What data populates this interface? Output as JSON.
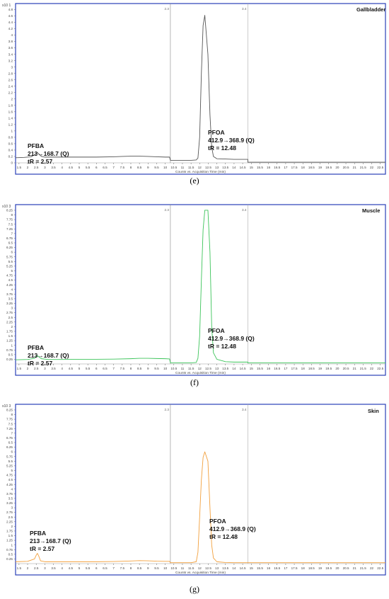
{
  "chart_data": [
    {
      "type": "line",
      "panel_label": "Gallbladder",
      "caption": "(e)",
      "line_color": "#555555",
      "y_exponent": "x10 1",
      "xlabel": "Counts vs. Acquisition Time (min)",
      "segment_labels": [
        "2.3",
        "3.4"
      ],
      "xlim": [
        1.3,
        22.8
      ],
      "ylim": [
        0,
        4.9
      ],
      "yticks": [
        "0",
        "0.2",
        "0.4",
        "0.6",
        "0.8",
        "1",
        "1.2",
        "1.4",
        "1.6",
        "1.8",
        "2",
        "2.2",
        "2.4",
        "2.6",
        "2.8",
        "3",
        "3.2",
        "3.4",
        "3.6",
        "3.8",
        "4",
        "4.2",
        "4.4",
        "4.6",
        "4.8"
      ],
      "xticks": [
        "1.5",
        "2",
        "2.5",
        "3",
        "3.5",
        "4",
        "4.5",
        "5",
        "5.5",
        "6",
        "6.5",
        "7",
        "7.5",
        "8",
        "8.5",
        "9",
        "9.5",
        "10",
        "10.5",
        "11",
        "11.5",
        "12",
        "12.5",
        "13",
        "13.5",
        "14",
        "14.5",
        "15",
        "15.5",
        "16",
        "16.5",
        "17",
        "17.5",
        "18",
        "18.5",
        "19",
        "19.5",
        "20",
        "20.5",
        "21",
        "21.5",
        "22",
        "22.5"
      ],
      "dividers": [
        10.3,
        14.8
      ],
      "series": [
        {
          "x": [
            1.3,
            1.8,
            2.2,
            2.4,
            2.5,
            2.57,
            2.65,
            2.8,
            3.0,
            4.0,
            5.0,
            6.0,
            7.0,
            7.5,
            8.0,
            8.5,
            9.0,
            9.5,
            10.0,
            10.25,
            10.3,
            10.6,
            11.0,
            11.5,
            11.8,
            11.9,
            12.0,
            12.1,
            12.2,
            12.3,
            12.48,
            12.6,
            12.7,
            12.8,
            13.0,
            13.5,
            14.0,
            14.5,
            14.8,
            14.8,
            16.0,
            18.0,
            20.0,
            22.8
          ],
          "y": [
            0.16,
            0.17,
            0.19,
            0.25,
            0.3,
            0.32,
            0.28,
            0.2,
            0.18,
            0.18,
            0.18,
            0.18,
            0.19,
            0.2,
            0.21,
            0.21,
            0.2,
            0.19,
            0.18,
            0.18,
            0.08,
            0.08,
            0.08,
            0.08,
            0.09,
            0.15,
            0.8,
            2.8,
            4.3,
            4.62,
            3.4,
            1.5,
            0.5,
            0.2,
            0.13,
            0.12,
            0.11,
            0.11,
            0.11,
            0.02,
            0.02,
            0.02,
            0.02,
            0.02
          ]
        }
      ],
      "annotations": {
        "pfba": [
          "PFBA",
          "213→168.7 (Q)",
          "tR = 2.57"
        ],
        "pfoa": [
          "PFOA",
          "412.9→368.9 (Q)",
          "tR = 12.48"
        ]
      }
    },
    {
      "type": "line",
      "panel_label": "Muscle",
      "caption": "(f)",
      "line_color": "#3cc45a",
      "y_exponent": "x10 3",
      "xlabel": "Counts vs. Acquisition Time (min)",
      "segment_labels": [
        "2.3",
        "3.4"
      ],
      "xlim": [
        1.3,
        22.8
      ],
      "ylim": [
        0,
        8.4
      ],
      "yticks": [
        "0.25",
        "0.5",
        "0.75",
        "1",
        "1.25",
        "1.5",
        "1.75",
        "2",
        "2.25",
        "2.5",
        "2.75",
        "3",
        "3.25",
        "3.5",
        "3.75",
        "4",
        "4.25",
        "4.5",
        "4.75",
        "5",
        "5.25",
        "5.5",
        "5.75",
        "6",
        "6.25",
        "6.5",
        "6.75",
        "7",
        "7.25",
        "7.5",
        "7.75",
        "8",
        "8.25"
      ],
      "xticks": [
        "1.5",
        "2",
        "2.5",
        "3",
        "3.5",
        "4",
        "4.5",
        "5",
        "5.5",
        "6",
        "6.5",
        "7",
        "7.5",
        "8",
        "8.5",
        "9",
        "9.5",
        "10",
        "10.5",
        "11",
        "11.5",
        "12",
        "12.5",
        "13",
        "13.5",
        "14",
        "14.5",
        "15",
        "15.5",
        "16",
        "16.5",
        "17",
        "17.5",
        "18",
        "18.5",
        "19",
        "19.5",
        "20",
        "20.5",
        "21",
        "21.5",
        "22",
        "22.5"
      ],
      "dividers": [
        10.3,
        14.8
      ],
      "series": [
        {
          "x": [
            1.3,
            2.0,
            2.4,
            2.5,
            2.57,
            2.65,
            2.8,
            3.2,
            4.0,
            5.0,
            6.0,
            7.0,
            8.0,
            8.5,
            9.0,
            9.5,
            10.0,
            10.25,
            10.3,
            11.0,
            11.5,
            11.8,
            11.9,
            12.0,
            12.1,
            12.2,
            12.3,
            12.48,
            12.6,
            12.7,
            12.8,
            13.0,
            13.5,
            14.0,
            14.8,
            14.8,
            16.0,
            18.0,
            20.0,
            22.8
          ],
          "y": [
            0.22,
            0.24,
            0.3,
            0.4,
            0.45,
            0.38,
            0.28,
            0.24,
            0.24,
            0.25,
            0.25,
            0.26,
            0.28,
            0.3,
            0.3,
            0.29,
            0.28,
            0.27,
            0.06,
            0.06,
            0.06,
            0.08,
            0.3,
            1.5,
            4.5,
            7.2,
            8.25,
            8.25,
            6.0,
            2.0,
            0.6,
            0.25,
            0.12,
            0.1,
            0.1,
            0.06,
            0.06,
            0.06,
            0.06,
            0.06
          ]
        }
      ],
      "annotations": {
        "pfba": [
          "PFBA",
          "213→168.7 (Q)",
          "tR = 2.57"
        ],
        "pfoa": [
          "PFOA",
          "412.9→368.9 (Q)",
          "tR = 12.48"
        ]
      }
    },
    {
      "type": "line",
      "panel_label": "Skin",
      "caption": "(g)",
      "line_color": "#f2a03d",
      "y_exponent": "x10 3",
      "xlabel": "Counts vs. Acquisition Time (min)",
      "segment_labels": [
        "2.3",
        "3.4"
      ],
      "xlim": [
        1.3,
        22.8
      ],
      "ylim": [
        0,
        8.4
      ],
      "yticks": [
        "0.25",
        "0.5",
        "0.75",
        "1",
        "1.25",
        "1.5",
        "1.75",
        "2",
        "2.25",
        "2.5",
        "2.75",
        "3",
        "3.25",
        "3.5",
        "3.75",
        "4",
        "4.25",
        "4.5",
        "4.75",
        "5",
        "5.25",
        "5.5",
        "5.75",
        "6",
        "6.25",
        "6.5",
        "6.75",
        "7",
        "7.25",
        "7.5",
        "7.75",
        "8",
        "8.25"
      ],
      "xticks": [
        "1.5",
        "2",
        "2.5",
        "3",
        "3.5",
        "4",
        "4.5",
        "5",
        "5.5",
        "6",
        "6.5",
        "7",
        "7.5",
        "8",
        "8.5",
        "9",
        "9.5",
        "10",
        "10.5",
        "11",
        "11.5",
        "12",
        "12.5",
        "13",
        "13.5",
        "14",
        "14.5",
        "15",
        "15.5",
        "16",
        "16.5",
        "17",
        "17.5",
        "18",
        "18.5",
        "19",
        "19.5",
        "20",
        "20.5",
        "21",
        "21.5",
        "22",
        "22.5"
      ],
      "dividers": [
        10.3,
        14.8
      ],
      "series": [
        {
          "x": [
            1.3,
            2.0,
            2.4,
            2.5,
            2.57,
            2.65,
            2.75,
            3.0,
            4.0,
            5.0,
            6.0,
            7.0,
            8.0,
            8.5,
            9.0,
            9.5,
            10.0,
            10.25,
            10.3,
            11.0,
            11.5,
            11.8,
            11.9,
            12.0,
            12.1,
            12.2,
            12.3,
            12.48,
            12.6,
            12.7,
            12.8,
            13.0,
            13.5,
            14.0,
            14.8,
            14.8,
            16.0,
            18.0,
            20.0,
            22.8
          ],
          "y": [
            0.1,
            0.12,
            0.25,
            0.45,
            0.55,
            0.4,
            0.15,
            0.1,
            0.1,
            0.1,
            0.1,
            0.11,
            0.14,
            0.16,
            0.15,
            0.13,
            0.12,
            0.12,
            0.05,
            0.05,
            0.05,
            0.1,
            0.6,
            2.5,
            4.5,
            5.7,
            6.0,
            5.5,
            3.0,
            1.0,
            0.3,
            0.1,
            0.06,
            0.05,
            0.05,
            0.05,
            0.05,
            0.05,
            0.05,
            0.05
          ]
        }
      ],
      "annotations": {
        "pfba": [
          "PFBA",
          "213→168.7 (Q)",
          "tR = 2.57"
        ],
        "pfoa": [
          "PFOA",
          "412.9→368.9 (Q)",
          "tR = 12.48"
        ]
      }
    }
  ]
}
